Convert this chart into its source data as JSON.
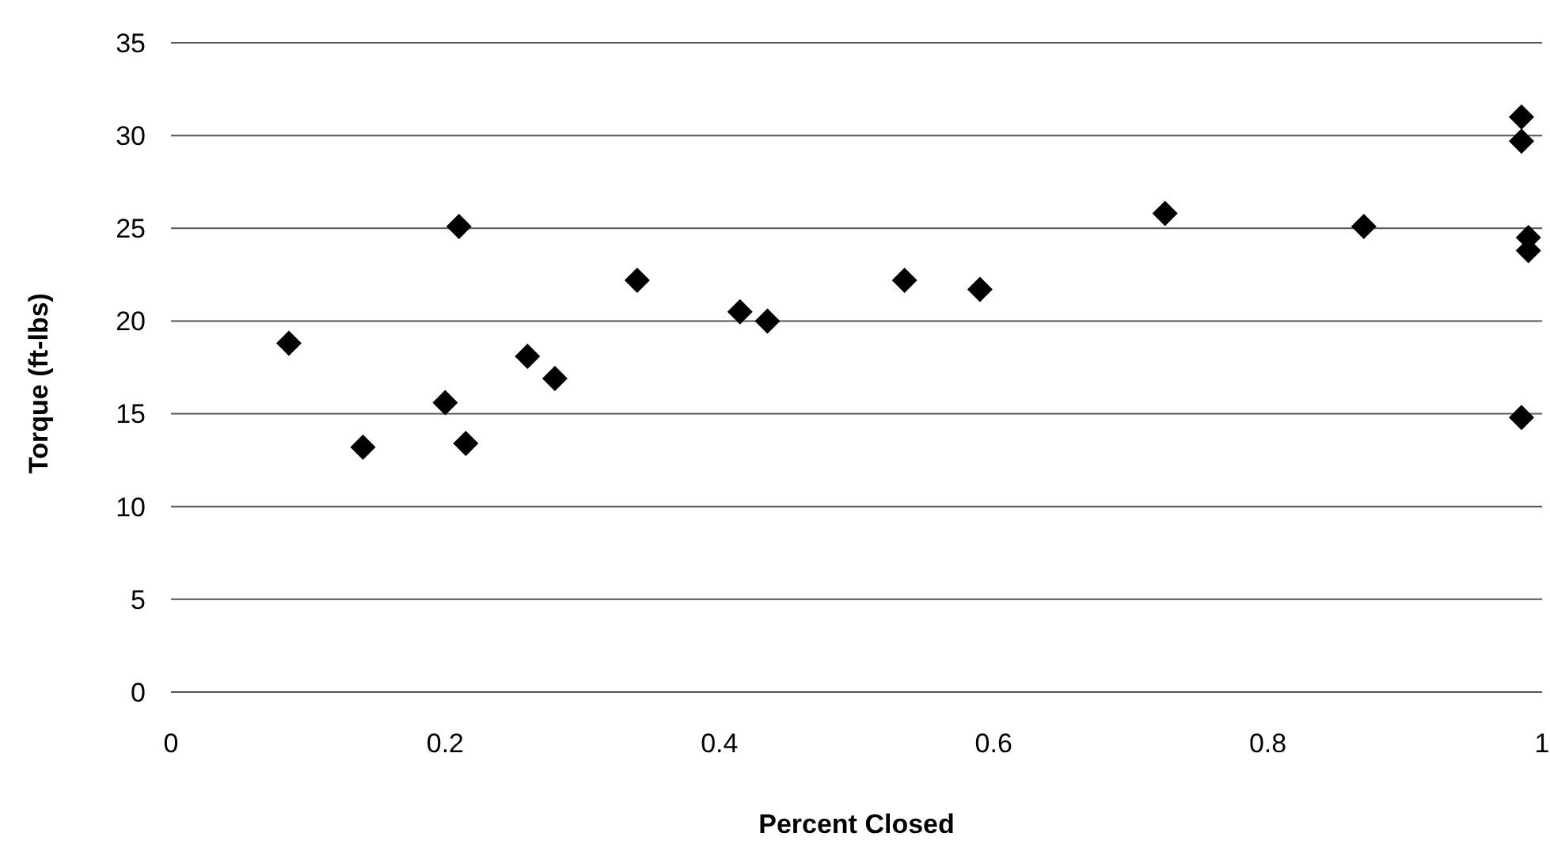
{
  "chart_data": {
    "type": "scatter",
    "xlabel": "Percent Closed",
    "ylabel": "Torque (ft-lbs)",
    "marker": "diamond",
    "grid": "y",
    "xlim": [
      0,
      1
    ],
    "xticks": [
      0,
      0.2,
      0.4,
      0.6,
      0.8,
      1
    ],
    "ylim": [
      0,
      35
    ],
    "yticks": [
      0,
      5,
      10,
      15,
      20,
      25,
      30,
      35
    ],
    "series": [
      {
        "color": "#000000",
        "x": [
          0.086,
          0.14,
          0.2,
          0.21,
          0.215,
          0.26,
          0.28,
          0.34,
          0.415,
          0.435,
          0.535,
          0.59,
          0.725,
          0.87,
          0.985,
          0.985,
          0.99,
          0.99,
          0.985
        ],
        "values": [
          18.8,
          13.2,
          15.6,
          25.1,
          13.4,
          18.1,
          16.9,
          22.2,
          20.5,
          20,
          22.2,
          21.7,
          25.8,
          25.1,
          31,
          29.7,
          24.5,
          23.8,
          14.8
        ]
      }
    ]
  }
}
